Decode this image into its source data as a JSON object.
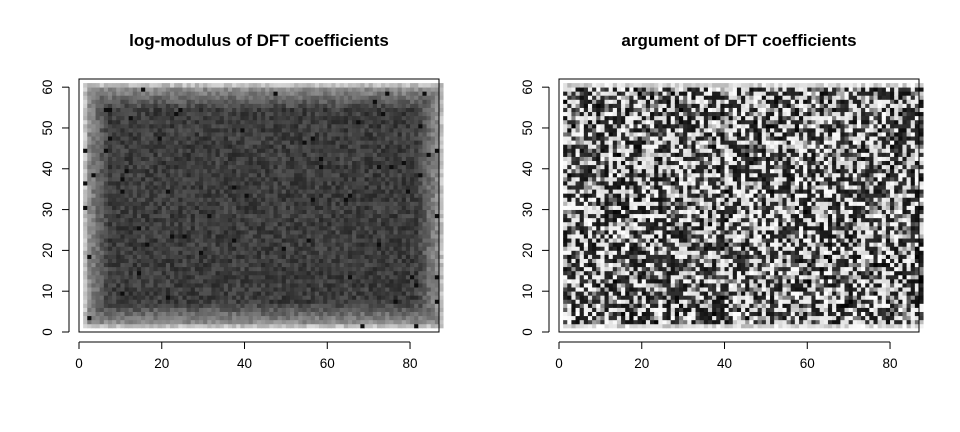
{
  "chart_data": [
    {
      "type": "heatmap",
      "title": "log-modulus of DFT coefficients",
      "xlabel": "",
      "ylabel": "",
      "xlim": [
        0,
        87
      ],
      "ylim": [
        0,
        62
      ],
      "x_ticks": [
        0,
        20,
        40,
        60,
        80
      ],
      "y_ticks": [
        0,
        10,
        20,
        30,
        40,
        50,
        60
      ],
      "grid": false,
      "n_x_cells": 87,
      "n_y_cells": 60,
      "colormap": "grayscale",
      "pattern": "dark-noisy-interior-with-lighter-borders",
      "colors": {
        "low": "#000000",
        "high": "#ffffff"
      }
    },
    {
      "type": "heatmap",
      "title": "argument of DFT coefficients",
      "xlabel": "",
      "ylabel": "",
      "xlim": [
        0,
        87
      ],
      "ylim": [
        0,
        62
      ],
      "x_ticks": [
        0,
        20,
        40,
        60,
        80
      ],
      "y_ticks": [
        0,
        10,
        20,
        30,
        40,
        50,
        60
      ],
      "grid": false,
      "n_x_cells": 87,
      "n_y_cells": 60,
      "colormap": "grayscale",
      "pattern": "high-contrast-noise",
      "colors": {
        "low": "#000000",
        "high": "#ffffff"
      }
    }
  ]
}
